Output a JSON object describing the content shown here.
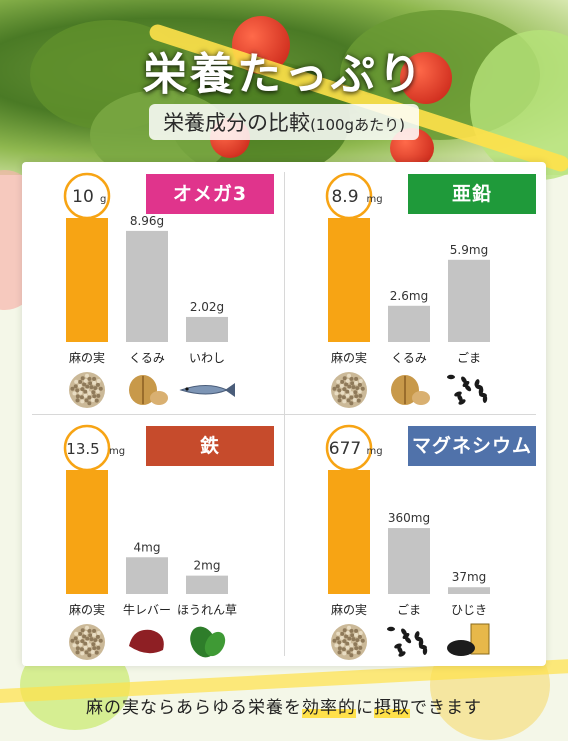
{
  "header": {
    "title": "栄養たっぷり",
    "subtitle": "栄養成分の比較",
    "subtitle_note": "(100gあたり)"
  },
  "colors": {
    "bar_highlight": "#f7a414",
    "bar_other": "#c4c4c4",
    "circle_border": "#f7a414",
    "omega3": "#e0348c",
    "zinc": "#1f9a3a",
    "iron": "#c64b2c",
    "magnesium": "#5072aa"
  },
  "chart_data": [
    {
      "type": "bar",
      "title": "オメガ3",
      "categories": [
        "麻の実",
        "くるみ",
        "いわし"
      ],
      "values": [
        10,
        8.96,
        2.02
      ],
      "value_labels": [
        "10",
        "8.96g",
        "2.02g"
      ],
      "highlight_unit": "g",
      "icons": [
        "hemp-seed-icon",
        "walnut-icon",
        "sardine-icon"
      ]
    },
    {
      "type": "bar",
      "title": "亜鉛",
      "categories": [
        "麻の実",
        "くるみ",
        "ごま"
      ],
      "values": [
        8.9,
        2.6,
        5.9
      ],
      "value_labels": [
        "8.9",
        "2.6mg",
        "5.9mg"
      ],
      "highlight_unit": "mg",
      "icons": [
        "hemp-seed-icon",
        "walnut-icon",
        "sesame-icon"
      ]
    },
    {
      "type": "bar",
      "title": "鉄",
      "categories": [
        "麻の実",
        "牛レバー",
        "ほうれん草"
      ],
      "values": [
        13.5,
        4,
        2
      ],
      "value_labels": [
        "13.5",
        "4mg",
        "2mg"
      ],
      "highlight_unit": "mg",
      "icons": [
        "hemp-seed-icon",
        "beef-liver-icon",
        "spinach-icon"
      ]
    },
    {
      "type": "bar",
      "title": "マグネシウム",
      "categories": [
        "麻の実",
        "ごま",
        "ひじき"
      ],
      "values": [
        677,
        360,
        37
      ],
      "value_labels": [
        "677",
        "360mg",
        "37mg"
      ],
      "highlight_unit": "mg",
      "icons": [
        "hemp-seed-icon",
        "sesame-icon",
        "hijiki-icon"
      ]
    }
  ],
  "footer": {
    "pre": "麻の実ならあらゆる栄養を",
    "highlight1": "効率的",
    "mid": "に",
    "highlight2": "摂取",
    "post": "できます"
  }
}
